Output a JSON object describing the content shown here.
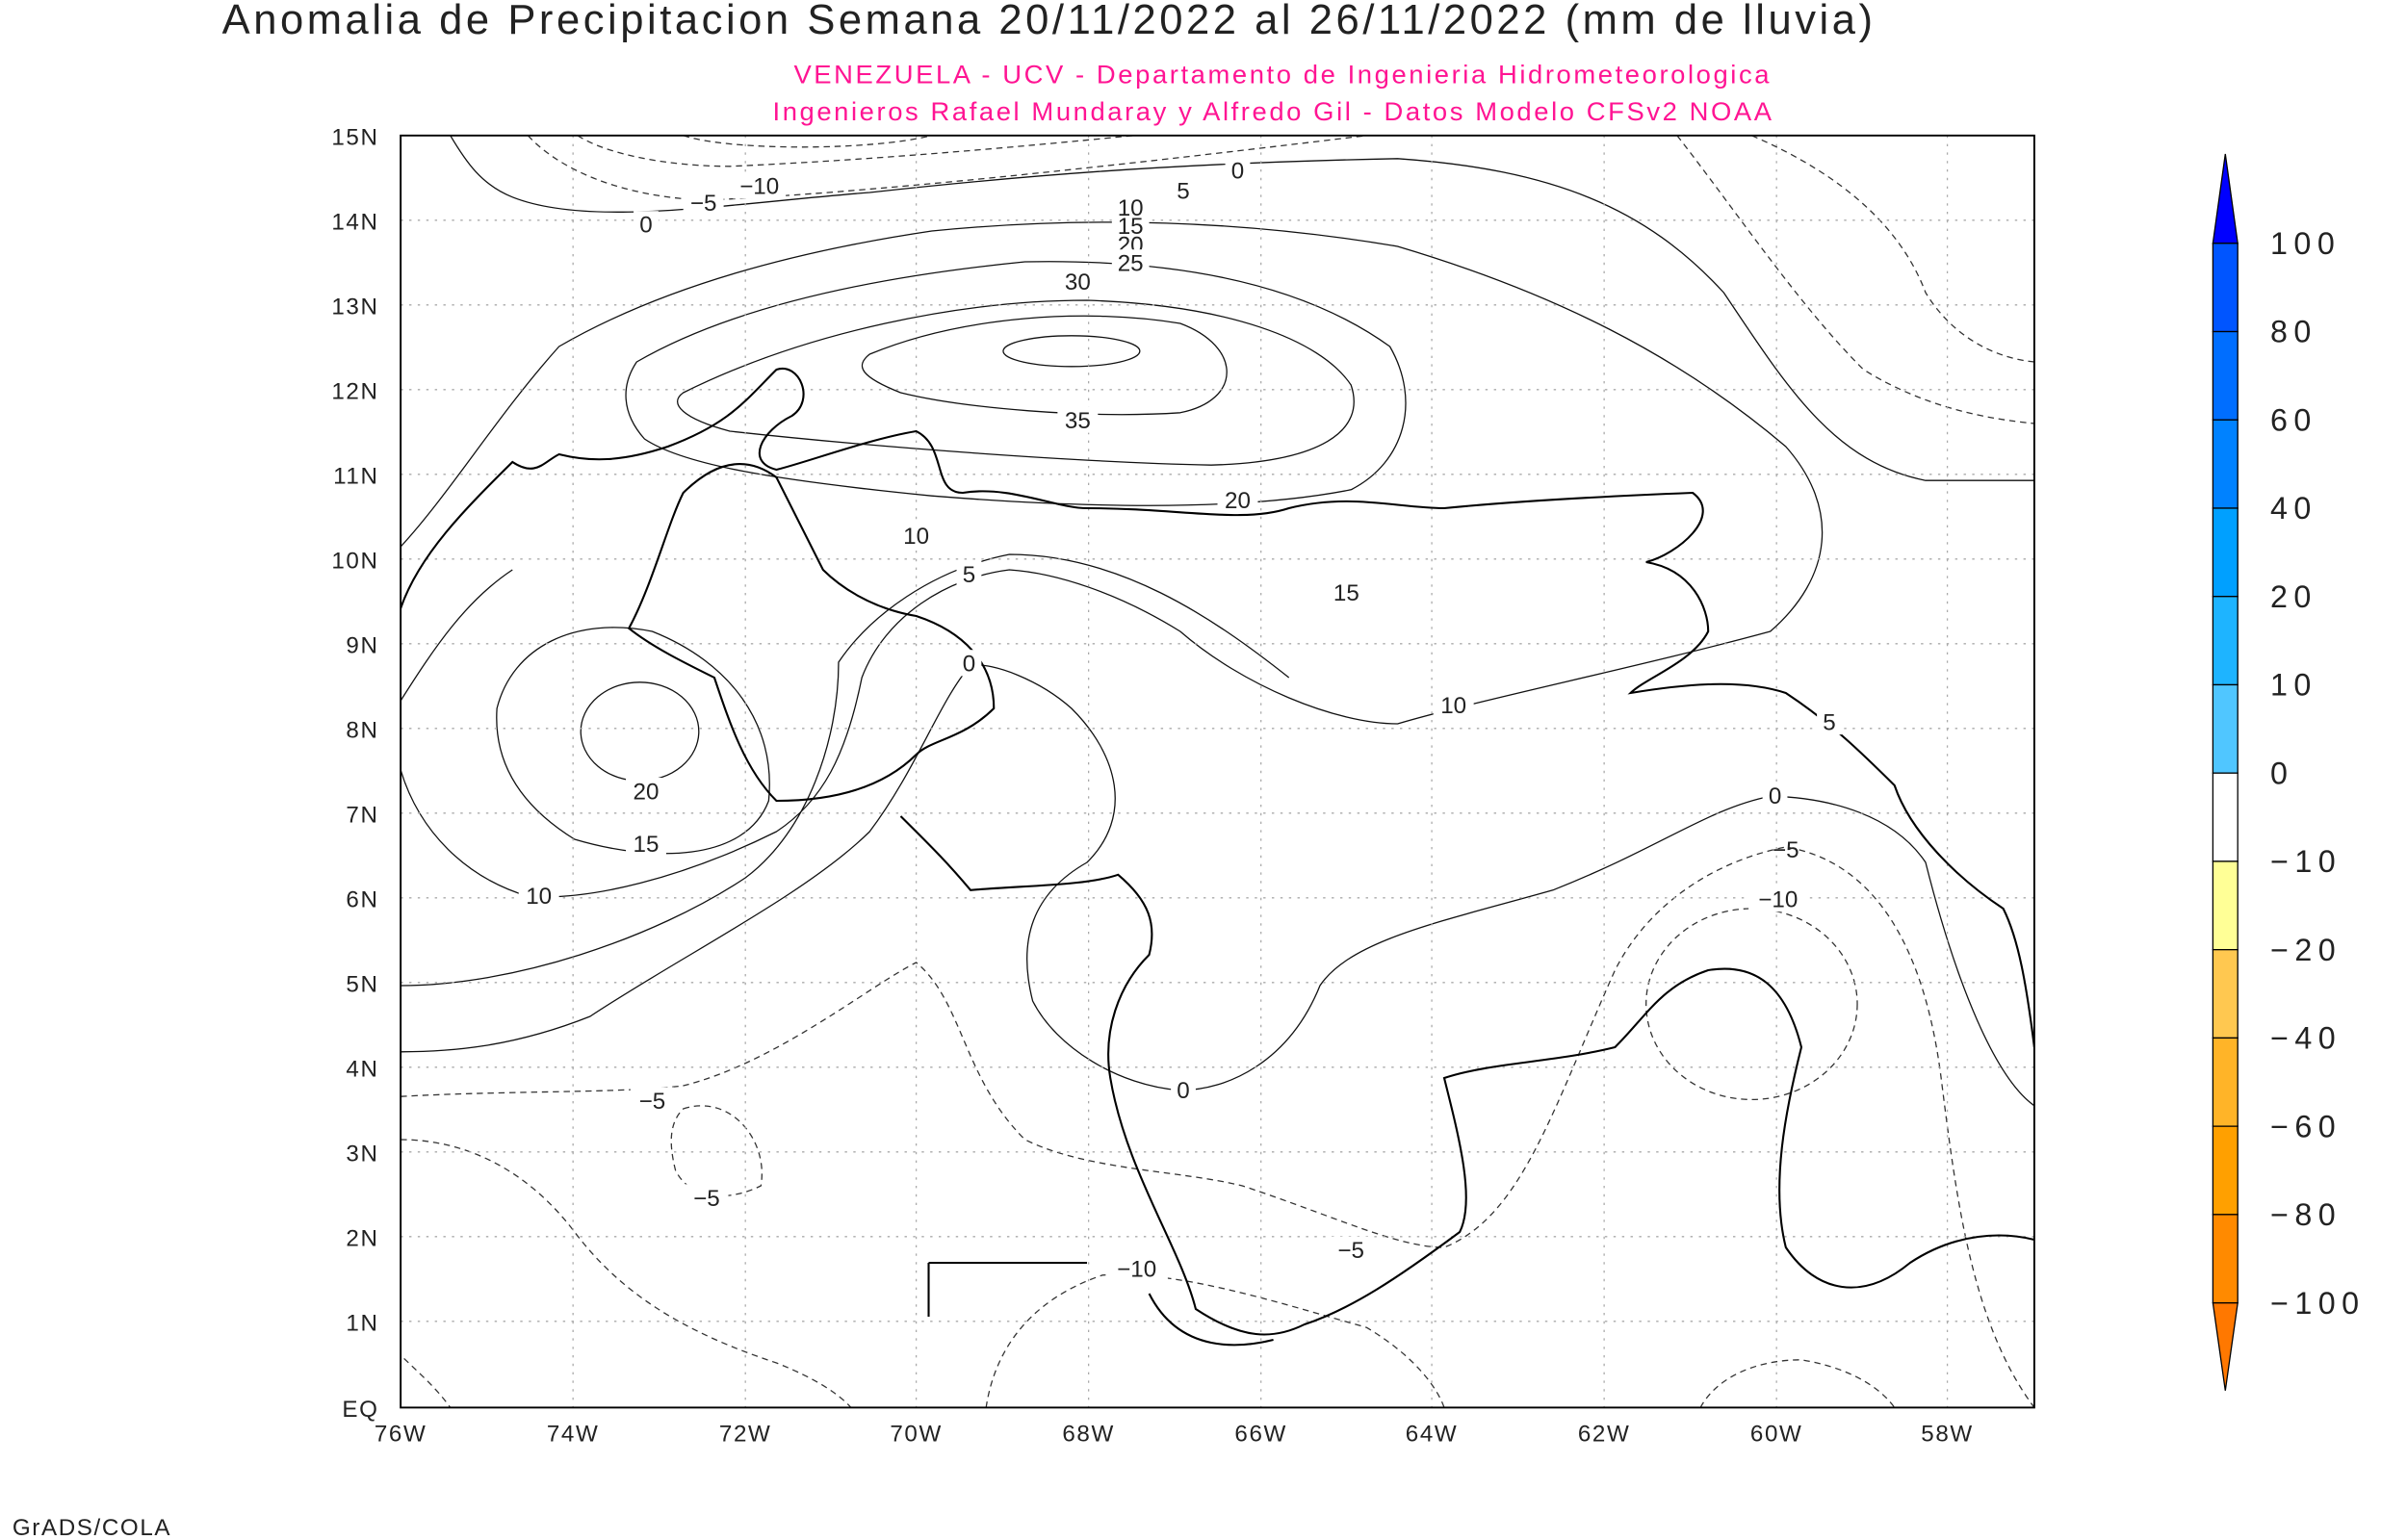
{
  "title": "Anomalia de Precipitacion Semana 20/11/2022 al 26/11/2022 (mm de lluvia)",
  "subtitle_1": "VENEZUELA - UCV - Departamento de Ingenieria Hidrometeorologica",
  "subtitle_2": "Ingenieros Rafael Mundaray y Alfredo Gil - Datos Modelo CFSv2 NOAA",
  "footer": "GrADS/COLA",
  "map": {
    "lon_labels": [
      "76W",
      "74W",
      "72W",
      "70W",
      "68W",
      "66W",
      "64W",
      "62W",
      "60W",
      "58W"
    ],
    "lat_labels": [
      "15N",
      "14N",
      "13N",
      "12N",
      "11N",
      "10N",
      "9N",
      "8N",
      "7N",
      "6N",
      "5N",
      "4N",
      "3N",
      "2N",
      "1N",
      "EQ"
    ],
    "contour_labels": [
      "0",
      "−10",
      "−5",
      "0",
      "5",
      "10",
      "15",
      "20",
      "25",
      "30",
      "35",
      "20",
      "10",
      "5",
      "15",
      "0",
      "10",
      "5",
      "0",
      "−5",
      "−10",
      "20",
      "15",
      "10",
      "0",
      "−5",
      "−5",
      "−5",
      "−10"
    ]
  },
  "colorbar": {
    "labels": [
      "100",
      "80",
      "60",
      "40",
      "20",
      "10",
      "0",
      "−10",
      "−20",
      "−40",
      "−60",
      "−80",
      "−100"
    ],
    "colors": [
      "#0055ff",
      "#006eff",
      "#0082ff",
      "#00a0ff",
      "#1eb4ff",
      "#50c6ff",
      "#ffffff",
      "#ffff96",
      "#ffc850",
      "#ffb428",
      "#ffa000",
      "#ff8a00"
    ],
    "over_color": "#0000ff",
    "under_color": "#ff7800"
  }
}
